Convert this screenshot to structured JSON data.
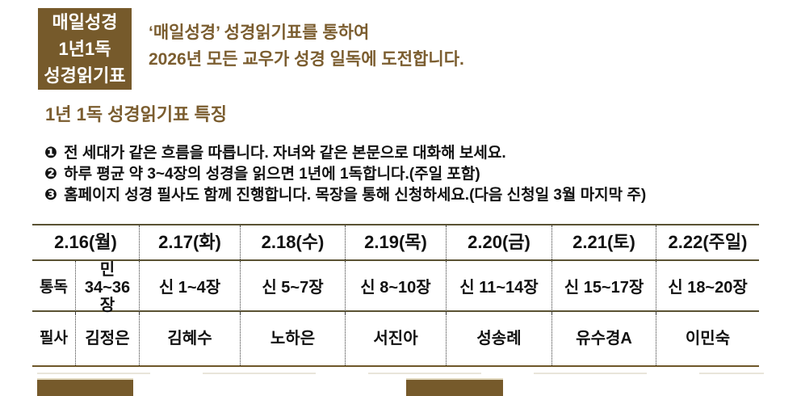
{
  "badge": {
    "line1": "매일성경",
    "line2": "1년1독",
    "line3": "성경읽기표"
  },
  "intro": {
    "line1": "‘매일성경’ 성경읽기표를 통하여",
    "line2": "2026년 모든 교우가 성경 일독에 도전합니다."
  },
  "section_title": "1년 1독 성경읽기표 특징",
  "features": [
    {
      "marker": "❶",
      "text": "전 세대가 같은 흐름을 따릅니다. 자녀와 같은 본문으로 대화해 보세요."
    },
    {
      "marker": "❷",
      "text": "하루 평균 약 3~4장의 성경을 읽으면 1년에 1독합니다.(주일 포함)"
    },
    {
      "marker": "❸",
      "text": "홈페이지 성경 필사도 함께 진행합니다. 목장을 통해 신청하세요.(다음 신청일 3월 마지막 주)"
    }
  ],
  "schedule_table": {
    "columns": [
      "2.16(월)",
      "2.17(화)",
      "2.18(수)",
      "2.19(목)",
      "2.20(금)",
      "2.21(토)",
      "2.22(주일)"
    ],
    "rows": [
      {
        "label": "통독",
        "cells": [
          "민 34~36장",
          "신 1~4장",
          "신 5~7장",
          "신 8~10장",
          "신 11~14장",
          "신 15~17장",
          "신 18~20장"
        ]
      },
      {
        "label": "필사",
        "cells": [
          "김정은",
          "김혜수",
          "노하은",
          "서진아",
          "성송례",
          "유수경A",
          "이민숙"
        ]
      }
    ]
  },
  "colors": {
    "brown": "#765a2b",
    "brown_text": "#7b5d2f",
    "table_line": "#5a5233",
    "table_bottom_line": "#6e5729"
  }
}
